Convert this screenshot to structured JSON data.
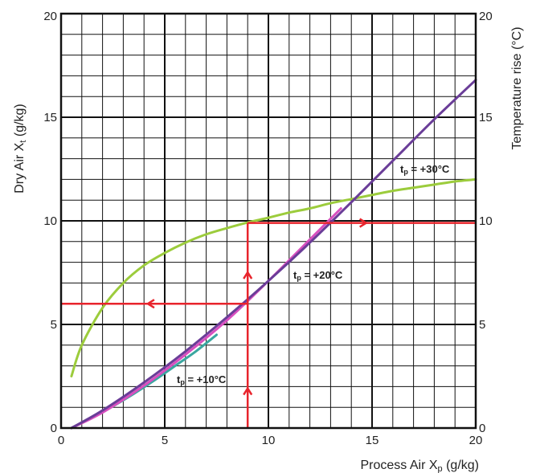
{
  "chart_data": {
    "type": "line",
    "xlabel": {
      "main": "Process Air  X",
      "sub": "p",
      "unit": " (g/kg)"
    },
    "ylabel_left": {
      "main": "Dry Air X",
      "sub": "t",
      "unit": " (g/kg)"
    },
    "ylabel_right": "Temperature rise (°C)",
    "xlim": [
      0,
      20
    ],
    "ylim_left": [
      0,
      20
    ],
    "ylim_right": [
      0,
      20
    ],
    "x_ticks": [
      "0",
      "5",
      "10",
      "15",
      "20"
    ],
    "y_ticks_left": [
      "0",
      "5",
      "10",
      "15",
      "20"
    ],
    "y_ticks_right": [
      "0",
      "5",
      "10",
      "15",
      "20"
    ],
    "grid": true,
    "series": [
      {
        "label": {
          "main": "t",
          "sub": "p",
          "rest": " = +10°C"
        },
        "color": "#3aa7a0",
        "x": [
          0.5,
          1.5,
          2.5,
          3.5,
          4.5,
          5.5,
          6.5,
          7.5
        ],
        "y": [
          0.0,
          0.5,
          1.05,
          1.65,
          2.3,
          3.0,
          3.7,
          4.5
        ]
      },
      {
        "label": {
          "main": "t",
          "sub": "p",
          "rest": " = +20°C"
        },
        "color": "#d84fbf",
        "x": [
          0.5,
          2,
          4,
          6,
          8,
          10,
          12,
          13.5
        ],
        "y": [
          0.0,
          0.75,
          2.05,
          3.55,
          5.2,
          7.1,
          9.1,
          10.6
        ]
      },
      {
        "label": {
          "main": "t",
          "sub": "p",
          "rest": " = +30°C"
        },
        "color": "#6a3d98",
        "x": [
          0.5,
          2,
          4,
          6,
          8,
          10,
          12,
          14,
          16,
          18,
          20
        ],
        "y": [
          0.0,
          0.85,
          2.2,
          3.7,
          5.35,
          7.1,
          8.95,
          10.9,
          12.9,
          14.9,
          16.8
        ]
      },
      {
        "label": {
          "main": "",
          "sub": "",
          "rest": ""
        },
        "color": "#9ccc3c",
        "axis": "right",
        "x": [
          0.5,
          1,
          2,
          3,
          4,
          5,
          6,
          7,
          8,
          9,
          10,
          11,
          12,
          13,
          14,
          15,
          16,
          17,
          18,
          19,
          20
        ],
        "y": [
          2.5,
          4.0,
          5.8,
          7.0,
          7.85,
          8.45,
          8.95,
          9.35,
          9.65,
          9.92,
          10.15,
          10.4,
          10.6,
          10.85,
          11.05,
          11.25,
          11.45,
          11.6,
          11.75,
          11.9,
          12.0
        ]
      }
    ],
    "guide": {
      "color": "#e8242c",
      "vertical_x": 9,
      "horizontal_right_y": 9.9,
      "horizontal_left_y": 6
    }
  }
}
